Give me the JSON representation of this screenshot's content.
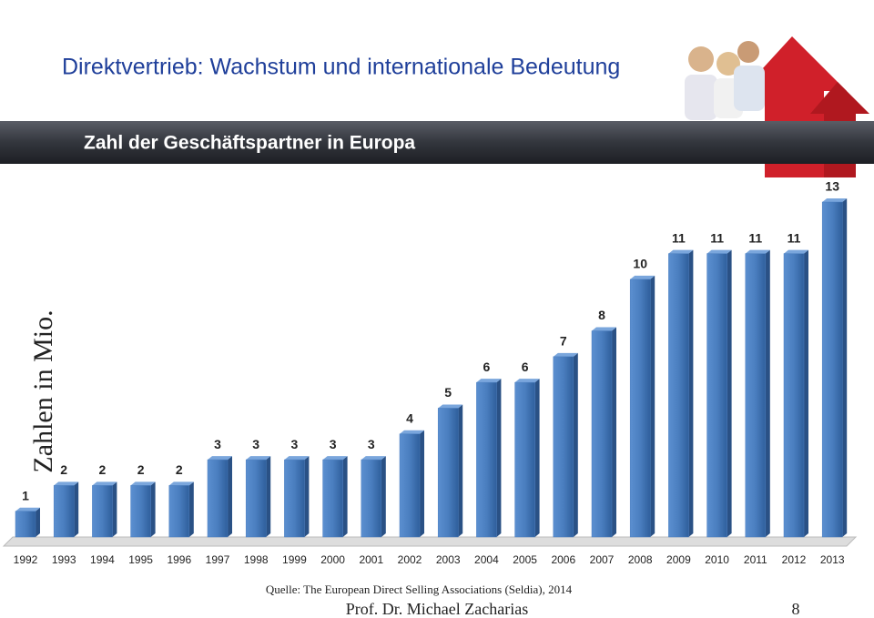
{
  "chart_data": {
    "type": "bar",
    "title": "Direktvertrieb: Wachstum und internationale Bedeutung",
    "subtitle": "Zahl der Geschäftspartner in Europa",
    "y_label": "Zahlen in Mio.",
    "categories": [
      "1992",
      "1993",
      "1994",
      "1995",
      "1996",
      "1997",
      "1998",
      "1999",
      "2000",
      "2001",
      "2002",
      "2003",
      "2004",
      "2005",
      "2006",
      "2007",
      "2008",
      "2009",
      "2010",
      "2011",
      "2012",
      "2013"
    ],
    "values": [
      1,
      2,
      2,
      2,
      2,
      3,
      3,
      3,
      3,
      3,
      4,
      5,
      6,
      6,
      7,
      8,
      10,
      11,
      11,
      11,
      11,
      13
    ],
    "color": "#4a7ebf",
    "source": "Quelle: The European Direct Selling Associations (Seldia), 2014",
    "author": "Prof. Dr. Michael Zacharias",
    "page_number": "8"
  }
}
